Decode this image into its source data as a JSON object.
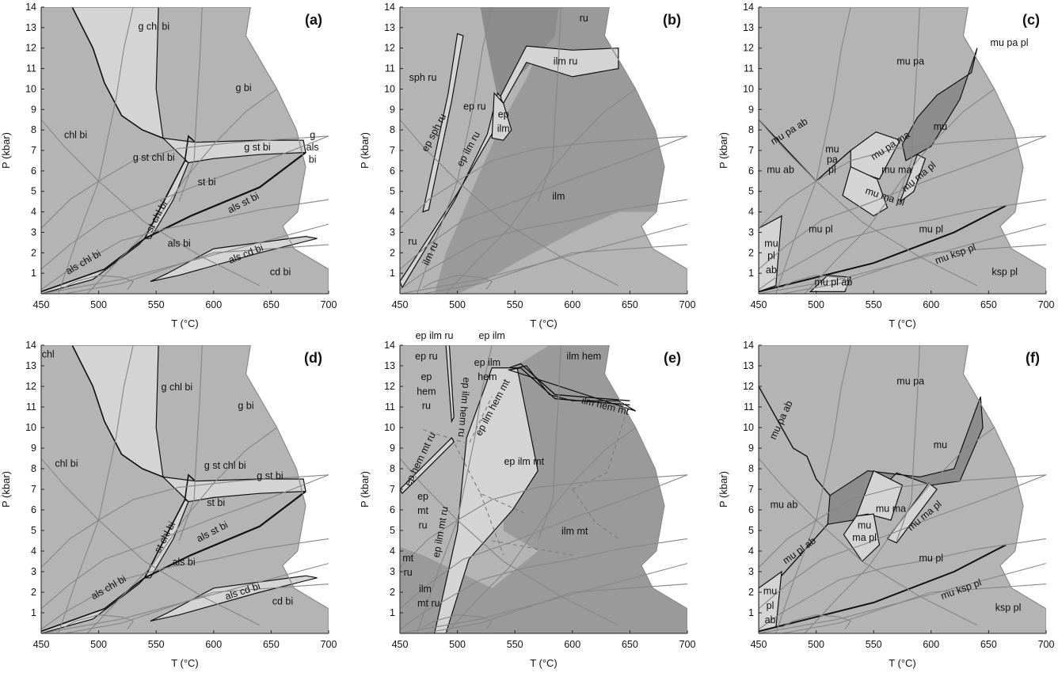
{
  "axes": {
    "x_title": "T (°C)",
    "y_title": "P (kbar)",
    "x_ticks": [
      "450",
      "500",
      "550",
      "600",
      "650",
      "700"
    ],
    "y_ticks": [
      "1",
      "2",
      "3",
      "4",
      "5",
      "6",
      "7",
      "8",
      "9",
      "10",
      "11",
      "12",
      "13",
      "14"
    ]
  },
  "colors": {
    "light": "#d4d4d4",
    "mid": "#b4b4b4",
    "dark": "#9a9a9a",
    "darker": "#8c8c8c",
    "line": "#858585",
    "bold": "#111111"
  },
  "panels": [
    {
      "id": "a",
      "label": "(a)",
      "fields": [
        {
          "t": "g chl bi",
          "x": 548,
          "y": 12.9
        },
        {
          "t": "g bi",
          "x": 626,
          "y": 9.9
        },
        {
          "t": "chl bi",
          "x": 480,
          "y": 7.6
        },
        {
          "t": "g",
          "x": 686,
          "y": 7.6
        },
        {
          "t": "g st bi",
          "x": 638,
          "y": 7.0
        },
        {
          "t": "als",
          "x": 686,
          "y": 7.0
        },
        {
          "t": "bi",
          "x": 686,
          "y": 6.4
        },
        {
          "t": "g st chl bi",
          "x": 548,
          "y": 6.5
        },
        {
          "t": "st bi",
          "x": 594,
          "y": 5.3
        },
        {
          "t": "als st bi",
          "x": 627,
          "y": 4.3,
          "r": -27
        },
        {
          "t": "st chl bi",
          "x": 553,
          "y": 3.7,
          "r": -62
        },
        {
          "t": "als bi",
          "x": 570,
          "y": 2.3
        },
        {
          "t": "als chl bi",
          "x": 488,
          "y": 1.4,
          "r": -30
        },
        {
          "t": "als cd bi",
          "x": 629,
          "y": 1.8,
          "r": -22
        },
        {
          "t": "cd bi",
          "x": 658,
          "y": 0.9
        }
      ]
    },
    {
      "id": "b",
      "label": "(b)",
      "fields": [
        {
          "t": "ru",
          "x": 610,
          "y": 13.3
        },
        {
          "t": "sph ru",
          "x": 470,
          "y": 10.4
        },
        {
          "t": "ilm ru",
          "x": 594,
          "y": 11.2
        },
        {
          "t": "ep ru",
          "x": 515,
          "y": 9.0
        },
        {
          "t": "ep",
          "x": 540,
          "y": 8.6
        },
        {
          "t": "ilm",
          "x": 540,
          "y": 7.9
        },
        {
          "t": "ep sph ru",
          "x": 482,
          "y": 7.8,
          "r": -62
        },
        {
          "t": "ep ilm ru",
          "x": 512,
          "y": 7.0,
          "r": -62
        },
        {
          "t": "ilm",
          "x": 588,
          "y": 4.6
        },
        {
          "t": "ru",
          "x": 461,
          "y": 2.4
        },
        {
          "t": "ilm ru",
          "x": 479,
          "y": 1.9,
          "r": -66
        }
      ]
    },
    {
      "id": "c",
      "label": "(c)",
      "fields": [
        {
          "t": "mu pa pl",
          "x": 668,
          "y": 12.1
        },
        {
          "t": "mu pa",
          "x": 582,
          "y": 11.2
        },
        {
          "t": "mu",
          "x": 608,
          "y": 8.0
        },
        {
          "t": "mu pa ab",
          "x": 478,
          "y": 7.8,
          "r": -32
        },
        {
          "t": "mu",
          "x": 514,
          "y": 6.9
        },
        {
          "t": "pa",
          "x": 514,
          "y": 6.4
        },
        {
          "t": "pl",
          "x": 514,
          "y": 5.9
        },
        {
          "t": "mu pa ma",
          "x": 566,
          "y": 7.1,
          "r": -33
        },
        {
          "t": "mu ma",
          "x": 570,
          "y": 5.9
        },
        {
          "t": "mu ab",
          "x": 469,
          "y": 5.9
        },
        {
          "t": "mu ma pl",
          "x": 591,
          "y": 5.6,
          "r": -40
        },
        {
          "t": "mu ma pl",
          "x": 559,
          "y": 4.6,
          "r": 18
        },
        {
          "t": "mu pl",
          "x": 504,
          "y": 3.0
        },
        {
          "t": "mu pl",
          "x": 600,
          "y": 3.0
        },
        {
          "t": "mu",
          "x": 461,
          "y": 2.3
        },
        {
          "t": "pl",
          "x": 461,
          "y": 1.7
        },
        {
          "t": "ab",
          "x": 461,
          "y": 1.0
        },
        {
          "t": "mu ksp pl",
          "x": 622,
          "y": 1.8,
          "r": -20
        },
        {
          "t": "mu pl ab",
          "x": 515,
          "y": 0.4
        },
        {
          "t": "ksp pl",
          "x": 664,
          "y": 0.9
        }
      ]
    },
    {
      "id": "d",
      "label": "(d)",
      "fields": [
        {
          "t": "chl",
          "x": 456,
          "y": 13.4
        },
        {
          "t": "g chl bi",
          "x": 568,
          "y": 11.8
        },
        {
          "t": "g bi",
          "x": 628,
          "y": 10.9
        },
        {
          "t": "chl bi",
          "x": 472,
          "y": 8.1
        },
        {
          "t": "g st chl bi",
          "x": 610,
          "y": 8.0
        },
        {
          "t": "g st bi",
          "x": 649,
          "y": 7.5
        },
        {
          "t": "st bi",
          "x": 602,
          "y": 6.2
        },
        {
          "t": "als st bi",
          "x": 600,
          "y": 4.8,
          "r": -27
        },
        {
          "t": "st chl bi",
          "x": 560,
          "y": 4.6,
          "r": -62
        },
        {
          "t": "als bi",
          "x": 574,
          "y": 3.3
        },
        {
          "t": "als chl bi",
          "x": 510,
          "y": 2.1,
          "r": -30
        },
        {
          "t": "als cd bi",
          "x": 626,
          "y": 1.9,
          "r": -18
        },
        {
          "t": "cd bi",
          "x": 660,
          "y": 1.4
        }
      ]
    },
    {
      "id": "e",
      "label": "(e)",
      "fields": [
        {
          "t": "ep ilm ru",
          "x": 480,
          "y": 14.3
        },
        {
          "t": "ep ilm",
          "x": 530,
          "y": 14.3
        },
        {
          "t": "ep ru",
          "x": 473,
          "y": 13.3
        },
        {
          "t": "ilm hem",
          "x": 610,
          "y": 13.3
        },
        {
          "t": "ep ilm",
          "x": 526,
          "y": 13.0
        },
        {
          "t": "hem",
          "x": 526,
          "y": 12.3
        },
        {
          "t": "ep",
          "x": 473,
          "y": 12.3
        },
        {
          "t": "hem",
          "x": 473,
          "y": 11.6
        },
        {
          "t": "ru",
          "x": 473,
          "y": 10.9
        },
        {
          "t": "ep ilm hem ru",
          "x": 503,
          "y": 11.0,
          "r": 95
        },
        {
          "t": "ep ilm hem mt",
          "x": 533,
          "y": 10.9,
          "r": -62
        },
        {
          "t": "ilm hem mt",
          "x": 628,
          "y": 10.9,
          "r": 14
        },
        {
          "t": "ep hem mt ru",
          "x": 470,
          "y": 8.4,
          "r": -64
        },
        {
          "t": "ep ilm mt",
          "x": 558,
          "y": 8.2
        },
        {
          "t": "ep",
          "x": 470,
          "y": 6.5
        },
        {
          "t": "mt",
          "x": 470,
          "y": 5.8
        },
        {
          "t": "ru",
          "x": 470,
          "y": 5.1
        },
        {
          "t": "ep ilm mt ru",
          "x": 488,
          "y": 4.9,
          "r": -80
        },
        {
          "t": "ilm mt",
          "x": 602,
          "y": 4.8
        },
        {
          "t": "mt",
          "x": 457,
          "y": 3.5
        },
        {
          "t": "ru",
          "x": 457,
          "y": 2.8
        },
        {
          "t": "ilm",
          "x": 472,
          "y": 2.0
        },
        {
          "t": "mt ru",
          "x": 475,
          "y": 1.3
        }
      ]
    },
    {
      "id": "f",
      "label": "(f)",
      "fields": [
        {
          "t": "mu pa",
          "x": 582,
          "y": 12.1
        },
        {
          "t": "mu pa ab",
          "x": 472,
          "y": 10.3,
          "r": -65
        },
        {
          "t": "mu",
          "x": 608,
          "y": 9.0
        },
        {
          "t": "mu ab",
          "x": 472,
          "y": 6.1
        },
        {
          "t": "mu ma",
          "x": 565,
          "y": 5.9
        },
        {
          "t": "mu ma pl",
          "x": 596,
          "y": 5.6,
          "r": -40
        },
        {
          "t": "mu",
          "x": 542,
          "y": 5.1
        },
        {
          "t": "ma pl",
          "x": 542,
          "y": 4.5
        },
        {
          "t": "mu pl ab",
          "x": 487,
          "y": 3.9,
          "r": -36
        },
        {
          "t": "mu pl",
          "x": 600,
          "y": 3.5
        },
        {
          "t": "mu",
          "x": 460,
          "y": 1.9
        },
        {
          "t": "pl",
          "x": 460,
          "y": 1.2
        },
        {
          "t": "ab",
          "x": 460,
          "y": 0.5
        },
        {
          "t": "mu ksp pl",
          "x": 627,
          "y": 2.0,
          "r": -20
        },
        {
          "t": "ksp pl",
          "x": 667,
          "y": 1.1
        }
      ]
    }
  ]
}
